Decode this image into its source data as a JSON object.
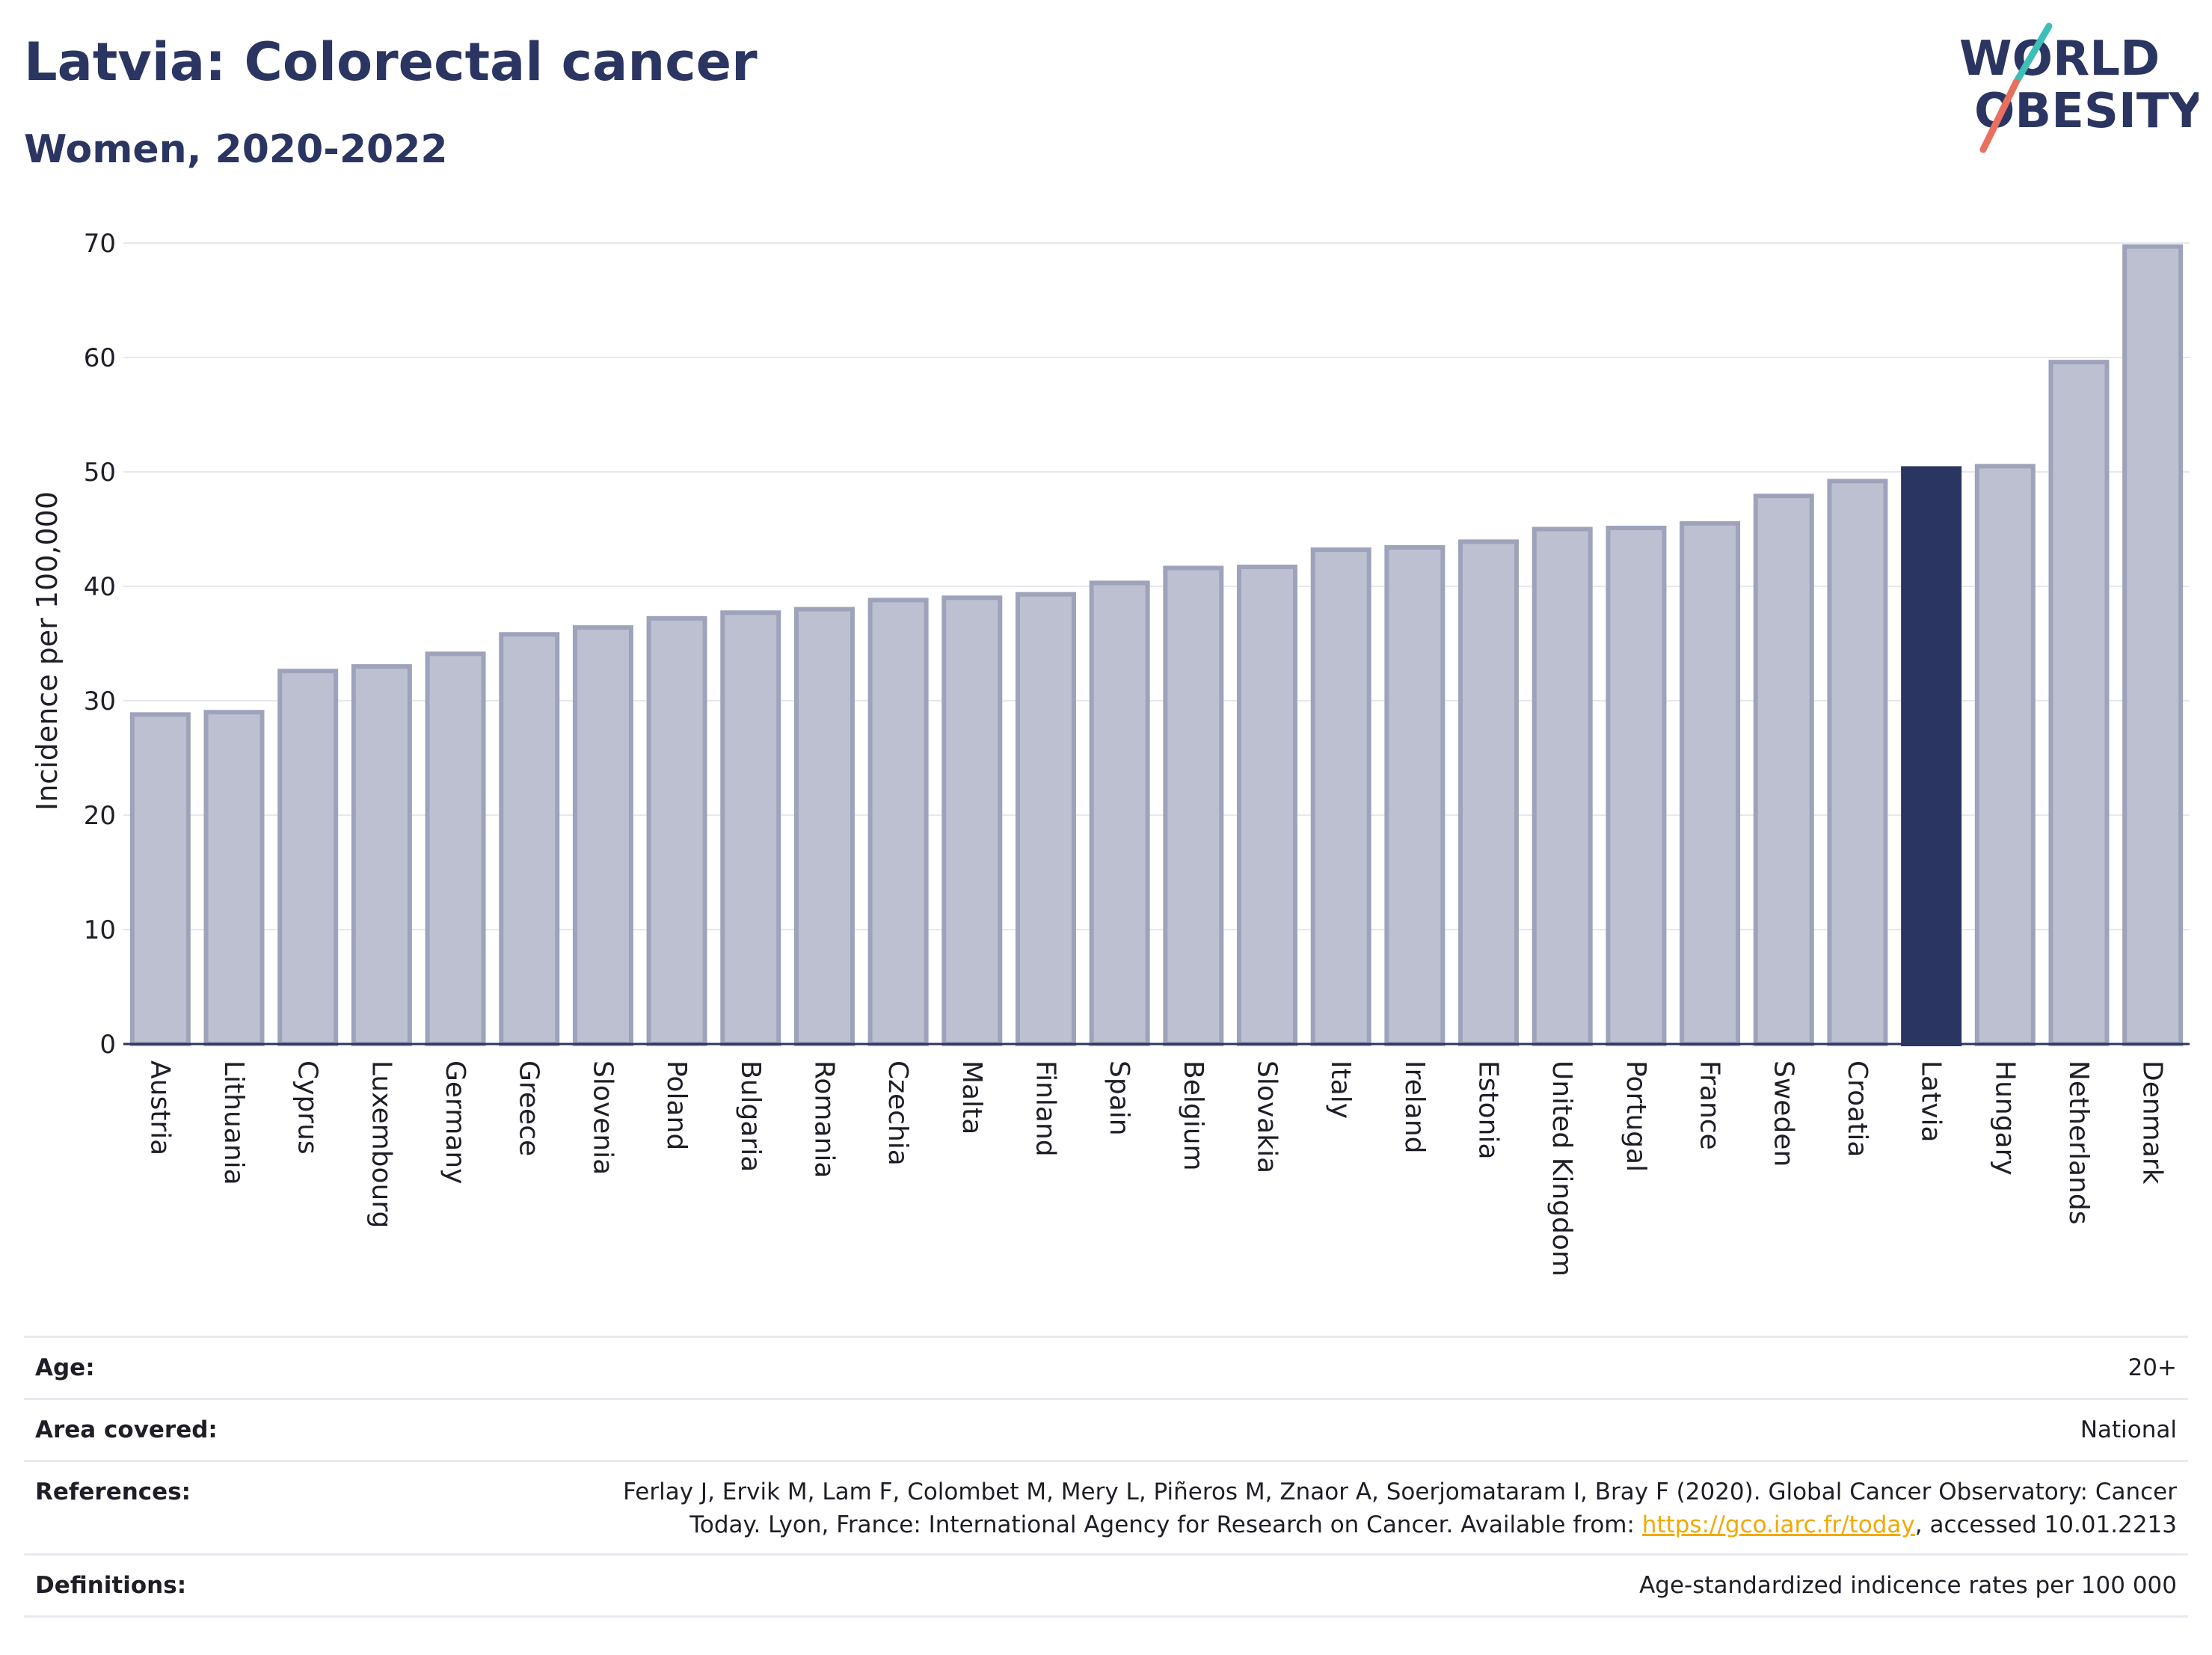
{
  "title": "Latvia: Colorectal cancer",
  "subtitle": "Women, 2020-2022",
  "logo": {
    "line1": "WORLD",
    "line2": "OBESITY"
  },
  "chart_data": {
    "type": "bar",
    "ylabel": "Incidence per 100,000",
    "ylim": [
      0,
      70
    ],
    "yticks": [
      0,
      10,
      20,
      30,
      40,
      50,
      60,
      70
    ],
    "categories": [
      "Austria",
      "Lithuania",
      "Cyprus",
      "Luxembourg",
      "Germany",
      "Greece",
      "Slovenia",
      "Poland",
      "Bulgaria",
      "Romania",
      "Czechia",
      "Malta",
      "Finland",
      "Spain",
      "Belgium",
      "Slovakia",
      "Italy",
      "Ireland",
      "Estonia",
      "United Kingdom",
      "Portugal",
      "France",
      "Sweden",
      "Croatia",
      "Latvia",
      "Hungary",
      "Netherlands",
      "Denmark"
    ],
    "values": [
      28.8,
      29.0,
      32.6,
      33.0,
      34.1,
      35.8,
      36.4,
      37.2,
      37.7,
      38.0,
      38.8,
      39.0,
      39.3,
      40.3,
      41.6,
      41.7,
      43.2,
      43.4,
      43.9,
      45.0,
      45.1,
      45.5,
      47.9,
      49.2,
      50.3,
      50.5,
      59.6,
      69.7
    ],
    "highlight": "Latvia",
    "colors": {
      "bar": "#bcc0d0",
      "bar_border": "#9ea3bb",
      "highlight": "#2b3561",
      "grid": "#e6e8ef",
      "axis": "#2b3561"
    }
  },
  "info": {
    "age_label": "Age:",
    "age_value": "20+",
    "area_label": "Area covered:",
    "area_value": "National",
    "references_label": "References:",
    "references_line1": "Ferlay J, Ervik M, Lam F, Colombet M, Mery L, Piñeros M, Znaor A, Soerjomataram I, Bray F (2020). Global Cancer Observatory: Cancer",
    "references_line2_prefix": "Today. Lyon, France: International Agency for Research on Cancer. Available from: ",
    "references_link": "https://gco.iarc.fr/today",
    "references_line2_suffix": ", accessed 10.01.2213",
    "definitions_label": "Definitions:",
    "definitions_value": "Age-standardized indicence rates per 100 000"
  }
}
